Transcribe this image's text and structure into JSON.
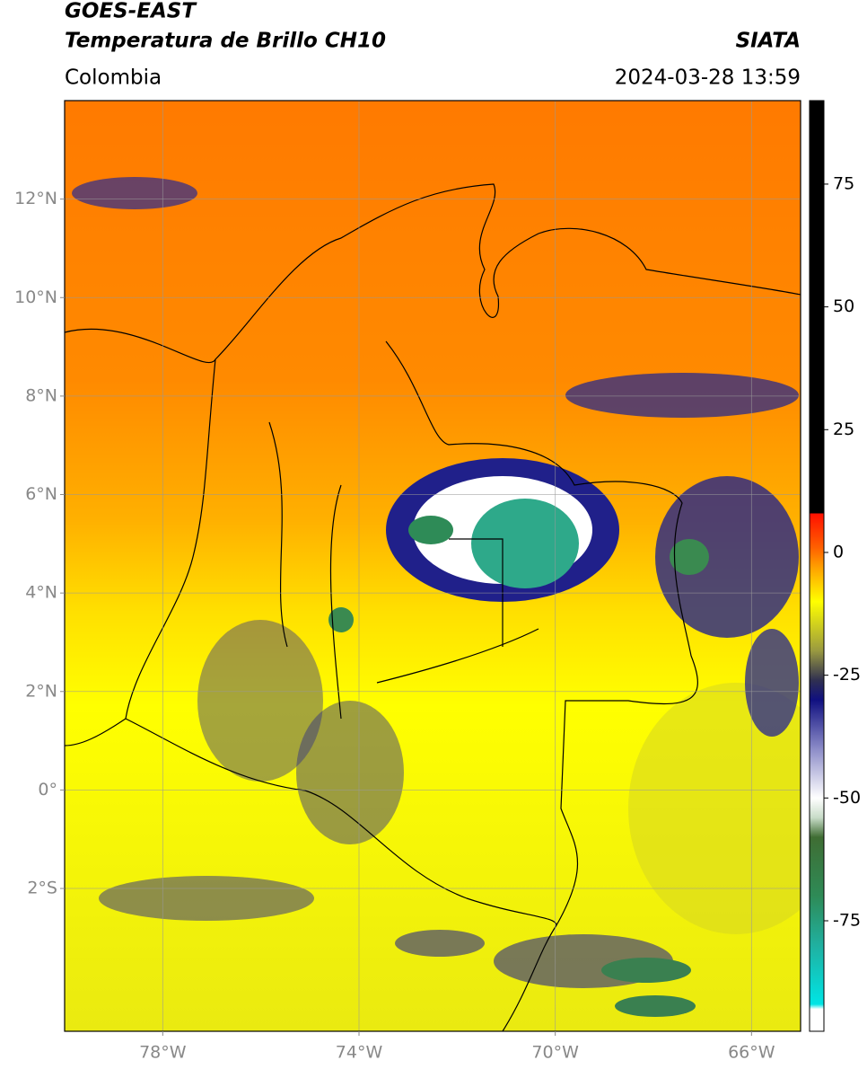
{
  "header": {
    "line1": "GOES-EAST",
    "line2": "Temperatura de Brillo CH10",
    "agency": "SIATA",
    "region": "Colombia",
    "datetime": "2024-03-28 13:59"
  },
  "map": {
    "type": "map",
    "xlim": [
      -80,
      -65
    ],
    "ylim": [
      -4.9,
      14
    ],
    "xticks": [
      {
        "value": -78,
        "label": "78°W"
      },
      {
        "value": -74,
        "label": "74°W"
      },
      {
        "value": -70,
        "label": "70°W"
      },
      {
        "value": -66,
        "label": "66°W"
      }
    ],
    "yticks": [
      {
        "value": -2,
        "label": "2°S"
      },
      {
        "value": 0,
        "label": "0°"
      },
      {
        "value": 2,
        "label": "2°N"
      },
      {
        "value": 4,
        "label": "4°N"
      },
      {
        "value": 6,
        "label": "6°N"
      },
      {
        "value": 8,
        "label": "8°N"
      },
      {
        "value": 10,
        "label": "10°N"
      },
      {
        "value": 12,
        "label": "12°N"
      }
    ],
    "grid": true,
    "colorbar": {
      "lim": [
        -97.5,
        92
      ],
      "ticks": [
        -75,
        -50,
        -25,
        0,
        25,
        50,
        75
      ],
      "colormap": [
        {
          "value": -97.5,
          "color": "#ffffff"
        },
        {
          "value": -93,
          "color": "#ffffff"
        },
        {
          "value": -92,
          "color": "#00e5e5"
        },
        {
          "value": -80,
          "color": "#20b0a0"
        },
        {
          "value": -70,
          "color": "#2e8b57"
        },
        {
          "value": -58,
          "color": "#3f6d33"
        },
        {
          "value": -54,
          "color": "#c8dcc8"
        },
        {
          "value": -50,
          "color": "#ffffff"
        },
        {
          "value": -40,
          "color": "#8c8cc8"
        },
        {
          "value": -30,
          "color": "#101080"
        },
        {
          "value": -26,
          "color": "#303050"
        },
        {
          "value": -20,
          "color": "#9a9a40"
        },
        {
          "value": -10,
          "color": "#ffff00"
        },
        {
          "value": -3,
          "color": "#ffa000"
        },
        {
          "value": 1,
          "color": "#ff6000"
        },
        {
          "value": 7.9,
          "color": "#ff1000"
        },
        {
          "value": 8,
          "color": "#000000"
        },
        {
          "value": 92,
          "color": "#000000"
        }
      ]
    }
  }
}
